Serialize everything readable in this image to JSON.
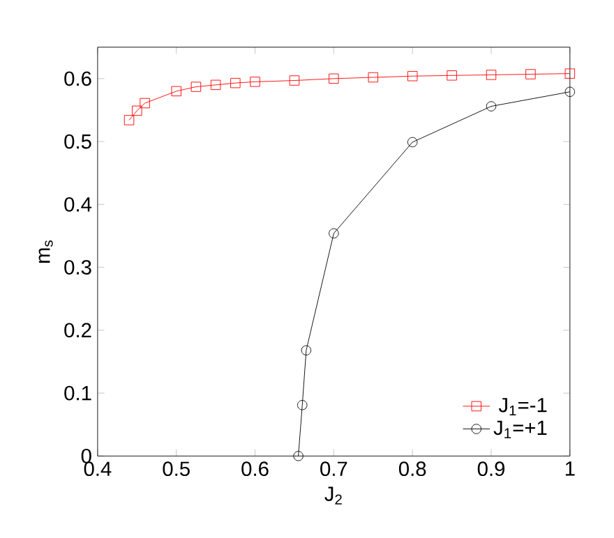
{
  "chart_data": {
    "type": "line",
    "xlabel": "J$_{2}$",
    "ylabel": "m$_{s}$",
    "xlim": [
      0.4,
      1
    ],
    "ylim": [
      0,
      0.65
    ],
    "xticks": [
      0.4,
      0.5,
      0.6,
      0.7,
      0.8,
      0.9,
      1
    ],
    "yticks": [
      0,
      0.1,
      0.2,
      0.3,
      0.4,
      0.5,
      0.6
    ],
    "legend": "bottom right",
    "grid": false,
    "series": [
      {
        "name": "J$_{1}$=-1",
        "color": "#ff0000",
        "marker": "square",
        "x": [
          0.44,
          0.45,
          0.46,
          0.5,
          0.525,
          0.55,
          0.575,
          0.6,
          0.65,
          0.7,
          0.75,
          0.8,
          0.85,
          0.9,
          0.95,
          1.0
        ],
        "values": [
          0.534,
          0.549,
          0.561,
          0.58,
          0.587,
          0.59,
          0.593,
          0.595,
          0.597,
          0.6,
          0.602,
          0.604,
          0.605,
          0.606,
          0.607,
          0.608
        ]
      },
      {
        "name": "J$_{1}$=+1",
        "color": "#000000",
        "marker": "circle",
        "x": [
          0.655,
          0.66,
          0.665,
          0.7,
          0.8,
          0.9,
          1.0
        ],
        "values": [
          0.0,
          0.081,
          0.168,
          0.354,
          0.499,
          0.556,
          0.579
        ]
      }
    ]
  }
}
